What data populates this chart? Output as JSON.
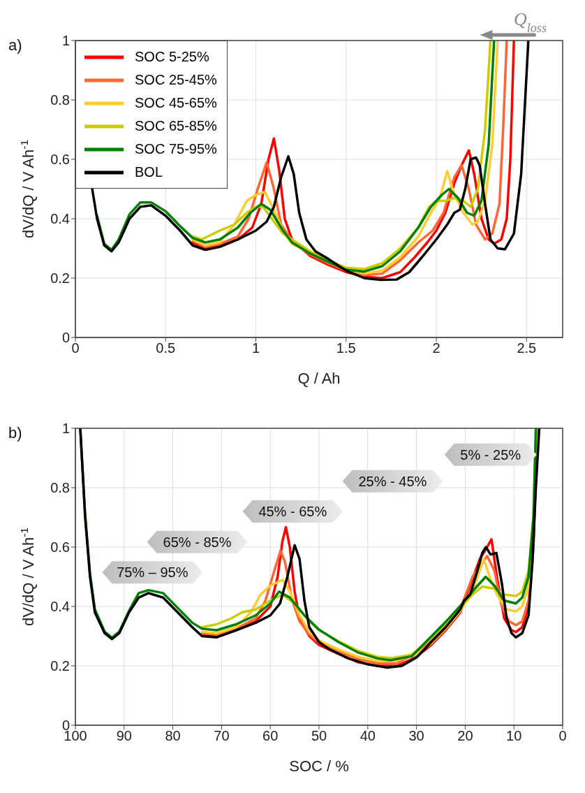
{
  "chart_data": [
    {
      "type": "line",
      "xlabel": "Q / Ah",
      "ylabel": "dV/dQ / V Ah$^{-1}$",
      "xlim": [
        0,
        2.7
      ],
      "xticks": [
        0,
        0.5,
        1,
        1.5,
        2,
        2.5
      ],
      "ylim": [
        0,
        1
      ],
      "yticks": [
        0,
        0.2,
        0.4,
        0.6,
        0.8,
        1
      ],
      "grid": true,
      "legend": "top left",
      "line_style": "solid",
      "annotations": [
        "a)",
        {
          "text": "Q$_{loss}$",
          "x": 2.52,
          "y": 1
        }
      ],
      "series": [
        {
          "name": "SOC 5-25%",
          "color": "#ff0000",
          "x": [
            0.65,
            0.72,
            0.8,
            0.9,
            0.98,
            1.03,
            1.07,
            1.1,
            1.13,
            1.16,
            1.2,
            1.3,
            1.4,
            1.5,
            1.6,
            1.7,
            1.8,
            1.88,
            1.95,
            2.0,
            2.05,
            2.1,
            2.14,
            2.18,
            2.21,
            2.25,
            2.29,
            2.32,
            2.36,
            2.39,
            2.41,
            2.43
          ],
          "values": [
            0.32,
            0.3,
            0.31,
            0.33,
            0.37,
            0.45,
            0.6,
            0.67,
            0.56,
            0.4,
            0.33,
            0.275,
            0.245,
            0.22,
            0.205,
            0.2,
            0.22,
            0.27,
            0.32,
            0.36,
            0.42,
            0.52,
            0.58,
            0.63,
            0.55,
            0.4,
            0.33,
            0.316,
            0.33,
            0.4,
            0.6,
            1.0
          ]
        },
        {
          "name": "SOC 25-45%",
          "color": "#ff6633",
          "x": [
            0.65,
            0.72,
            0.8,
            0.9,
            0.96,
            1.01,
            1.06,
            1.1,
            1.14,
            1.2,
            1.3,
            1.4,
            1.5,
            1.6,
            1.7,
            1.8,
            1.9,
            1.98,
            2.04,
            2.1,
            2.14,
            2.18,
            2.22,
            2.27,
            2.31,
            2.35,
            2.37,
            2.39
          ],
          "values": [
            0.325,
            0.305,
            0.315,
            0.34,
            0.4,
            0.5,
            0.59,
            0.5,
            0.38,
            0.325,
            0.28,
            0.25,
            0.225,
            0.21,
            0.215,
            0.26,
            0.32,
            0.36,
            0.42,
            0.54,
            0.58,
            0.5,
            0.38,
            0.33,
            0.35,
            0.45,
            0.7,
            1.0
          ]
        },
        {
          "name": "SOC 45-65%",
          "color": "#ffcc33",
          "x": [
            0.65,
            0.72,
            0.8,
            0.88,
            0.95,
            1.0,
            1.05,
            1.1,
            1.15,
            1.2,
            1.3,
            1.4,
            1.5,
            1.6,
            1.7,
            1.8,
            1.9,
            1.97,
            2.02,
            2.06,
            2.1,
            2.15,
            2.2,
            2.23,
            2.27,
            2.31,
            2.34
          ],
          "values": [
            0.33,
            0.31,
            0.32,
            0.38,
            0.46,
            0.48,
            0.49,
            0.43,
            0.36,
            0.315,
            0.285,
            0.255,
            0.23,
            0.215,
            0.225,
            0.27,
            0.34,
            0.42,
            0.47,
            0.56,
            0.48,
            0.42,
            0.38,
            0.39,
            0.46,
            0.65,
            1.0
          ]
        },
        {
          "name": "SOC 65-85%",
          "color": "#cccc00",
          "x": [
            0.65,
            0.7,
            0.8,
            0.88,
            0.95,
            1.0,
            1.04,
            1.1,
            1.15,
            1.2,
            1.3,
            1.4,
            1.5,
            1.6,
            1.7,
            1.8,
            1.9,
            1.96,
            2.0,
            2.05,
            2.1,
            2.15,
            2.19,
            2.23,
            2.27,
            2.3
          ],
          "values": [
            0.34,
            0.33,
            0.36,
            0.38,
            0.42,
            0.44,
            0.44,
            0.39,
            0.35,
            0.33,
            0.29,
            0.26,
            0.235,
            0.23,
            0.25,
            0.3,
            0.37,
            0.44,
            0.46,
            0.46,
            0.47,
            0.46,
            0.44,
            0.5,
            0.7,
            1.0
          ]
        },
        {
          "name": "SOC 75-95%",
          "color": "#008000",
          "x": [
            0.12,
            0.16,
            0.2,
            0.24,
            0.3,
            0.36,
            0.42,
            0.5,
            0.58,
            0.65,
            0.72,
            0.8,
            0.9,
            0.97,
            1.03,
            1.08,
            1.15,
            1.2,
            1.3,
            1.4,
            1.5,
            1.6,
            1.7,
            1.8,
            1.9,
            1.97,
            2.03,
            2.07,
            2.12,
            2.17,
            2.21,
            2.25,
            2.29,
            2.32
          ],
          "values": [
            0.41,
            0.315,
            0.295,
            0.33,
            0.415,
            0.455,
            0.455,
            0.425,
            0.375,
            0.335,
            0.32,
            0.33,
            0.37,
            0.42,
            0.45,
            0.43,
            0.36,
            0.32,
            0.283,
            0.255,
            0.228,
            0.222,
            0.24,
            0.29,
            0.37,
            0.44,
            0.48,
            0.5,
            0.47,
            0.42,
            0.41,
            0.46,
            0.65,
            1.0
          ]
        },
        {
          "name": "BOL",
          "color": "#000000",
          "x": [
            0.08,
            0.12,
            0.16,
            0.2,
            0.24,
            0.3,
            0.36,
            0.42,
            0.5,
            0.58,
            0.65,
            0.72,
            0.8,
            0.9,
            1.0,
            1.06,
            1.1,
            1.14,
            1.18,
            1.21,
            1.24,
            1.28,
            1.33,
            1.4,
            1.5,
            1.6,
            1.69,
            1.78,
            1.85,
            1.92,
            2.0,
            2.06,
            2.1,
            2.13,
            2.16,
            2.19,
            2.22,
            2.24,
            2.27,
            2.3,
            2.34,
            2.38,
            2.43,
            2.47,
            2.51
          ],
          "values": [
            0.55,
            0.4,
            0.31,
            0.29,
            0.32,
            0.4,
            0.44,
            0.445,
            0.41,
            0.36,
            0.31,
            0.295,
            0.305,
            0.33,
            0.36,
            0.39,
            0.44,
            0.54,
            0.61,
            0.55,
            0.42,
            0.33,
            0.29,
            0.265,
            0.225,
            0.2,
            0.194,
            0.195,
            0.22,
            0.27,
            0.33,
            0.38,
            0.42,
            0.43,
            0.5,
            0.6,
            0.606,
            0.58,
            0.45,
            0.33,
            0.3,
            0.297,
            0.35,
            0.55,
            1.0
          ]
        }
      ]
    },
    {
      "type": "line",
      "xlabel": "SOC / %",
      "ylabel": "dV/dQ / V Ah$^{-1}$",
      "xlim": [
        100,
        0
      ],
      "xticks": [
        100,
        90,
        80,
        70,
        60,
        50,
        40,
        30,
        20,
        10,
        0
      ],
      "ylim": [
        0,
        1
      ],
      "yticks": [
        0,
        0.2,
        0.4,
        0.6,
        0.8,
        1
      ],
      "grid": true,
      "line_style": "solid",
      "annotations": [
        "b)",
        "75% – 95%",
        "65% - 85%",
        "45% - 65%",
        "25% - 45%",
        "5% - 25%"
      ],
      "series": [
        {
          "color": "#ff0000",
          "x": [
            74,
            71,
            67,
            63,
            60,
            58.5,
            57.5,
            56.8,
            56,
            55,
            54,
            52,
            50,
            46,
            42,
            38,
            34,
            30,
            27,
            24,
            21,
            19,
            17,
            15.5,
            14.6,
            13.5,
            12,
            10.5,
            9.6,
            8.3,
            7,
            6,
            5.2
          ],
          "values": [
            0.305,
            0.3,
            0.32,
            0.35,
            0.4,
            0.5,
            0.62,
            0.667,
            0.6,
            0.45,
            0.36,
            0.3,
            0.27,
            0.24,
            0.212,
            0.2,
            0.2,
            0.23,
            0.27,
            0.32,
            0.38,
            0.47,
            0.56,
            0.6,
            0.626,
            0.5,
            0.36,
            0.32,
            0.314,
            0.33,
            0.4,
            0.6,
            1.0
          ]
        },
        {
          "color": "#ff6633",
          "x": [
            74,
            71,
            67,
            63,
            61,
            59,
            57.9,
            57,
            55.5,
            54,
            52,
            50,
            46,
            42,
            38,
            34,
            30,
            27,
            24,
            21,
            18.5,
            15.5,
            14,
            12.5,
            11,
            9.6,
            8.3,
            7,
            6,
            5.3
          ],
          "values": [
            0.31,
            0.305,
            0.325,
            0.36,
            0.42,
            0.53,
            0.588,
            0.55,
            0.42,
            0.35,
            0.305,
            0.278,
            0.248,
            0.223,
            0.208,
            0.208,
            0.245,
            0.288,
            0.338,
            0.392,
            0.5,
            0.57,
            0.52,
            0.4,
            0.35,
            0.337,
            0.35,
            0.42,
            0.6,
            1.0
          ]
        },
        {
          "color": "#ffcc33",
          "x": [
            74,
            71,
            67,
            64,
            62,
            60,
            57.5,
            56,
            54,
            52,
            50,
            46,
            42,
            38,
            34,
            30,
            27,
            24,
            21,
            18.5,
            16.2,
            15,
            13.5,
            11.5,
            9.6,
            8.3,
            7,
            6,
            5.3
          ],
          "values": [
            0.315,
            0.31,
            0.33,
            0.38,
            0.44,
            0.47,
            0.49,
            0.45,
            0.37,
            0.315,
            0.285,
            0.255,
            0.23,
            0.216,
            0.218,
            0.24,
            0.275,
            0.325,
            0.385,
            0.45,
            0.56,
            0.5,
            0.44,
            0.39,
            0.383,
            0.4,
            0.47,
            0.65,
            1.0
          ]
        },
        {
          "color": "#cccc00",
          "x": [
            74,
            71,
            68,
            65.8,
            63,
            60,
            57.5,
            55,
            52,
            50,
            46,
            42,
            38,
            35,
            31,
            27,
            24,
            21,
            18.5,
            16.5,
            14,
            12,
            9.6,
            8.3,
            7,
            6,
            5.4
          ],
          "values": [
            0.33,
            0.34,
            0.36,
            0.38,
            0.39,
            0.42,
            0.44,
            0.41,
            0.35,
            0.32,
            0.283,
            0.25,
            0.23,
            0.226,
            0.238,
            0.292,
            0.342,
            0.397,
            0.44,
            0.467,
            0.46,
            0.44,
            0.435,
            0.45,
            0.52,
            0.7,
            1.0
          ]
        },
        {
          "color": "#008000",
          "x": [
            99,
            98,
            97,
            96,
            94,
            92.5,
            91,
            89,
            87,
            85,
            82,
            79,
            76,
            74,
            71,
            67,
            63,
            60,
            58.2,
            56,
            53,
            50,
            46,
            42,
            38,
            35.4,
            31,
            27,
            24,
            21,
            18,
            15.8,
            14,
            12,
            9.6,
            8.3,
            7,
            6,
            5.5
          ],
          "values": [
            1.0,
            0.71,
            0.51,
            0.39,
            0.315,
            0.295,
            0.315,
            0.385,
            0.445,
            0.455,
            0.445,
            0.395,
            0.345,
            0.325,
            0.32,
            0.34,
            0.37,
            0.41,
            0.45,
            0.43,
            0.37,
            0.322,
            0.28,
            0.245,
            0.225,
            0.219,
            0.232,
            0.298,
            0.348,
            0.402,
            0.46,
            0.5,
            0.47,
            0.42,
            0.41,
            0.43,
            0.5,
            0.7,
            1.0
          ]
        },
        {
          "color": "#000000",
          "x": [
            99,
            98,
            97,
            96,
            94,
            92.5,
            91,
            89,
            87,
            85,
            82,
            79,
            76,
            74,
            71,
            67,
            63,
            60,
            58,
            56.5,
            55,
            54,
            53,
            52,
            50,
            48,
            44,
            40,
            36,
            33,
            30,
            27,
            24,
            21,
            20.2,
            19,
            17.5,
            16.5,
            15.75,
            14.8,
            13.6,
            12.5,
            11.5,
            10.5,
            9.6,
            8.3,
            7,
            6.2,
            5.5,
            4.8
          ],
          "values": [
            1.0,
            0.7,
            0.5,
            0.38,
            0.31,
            0.29,
            0.31,
            0.38,
            0.43,
            0.445,
            0.43,
            0.38,
            0.33,
            0.3,
            0.296,
            0.32,
            0.345,
            0.37,
            0.41,
            0.5,
            0.606,
            0.56,
            0.42,
            0.33,
            0.28,
            0.257,
            0.225,
            0.205,
            0.194,
            0.2,
            0.228,
            0.28,
            0.33,
            0.39,
            0.42,
            0.44,
            0.52,
            0.58,
            0.6,
            0.575,
            0.58,
            0.48,
            0.36,
            0.31,
            0.296,
            0.31,
            0.37,
            0.55,
            0.8,
            1.0
          ]
        }
      ]
    }
  ]
}
